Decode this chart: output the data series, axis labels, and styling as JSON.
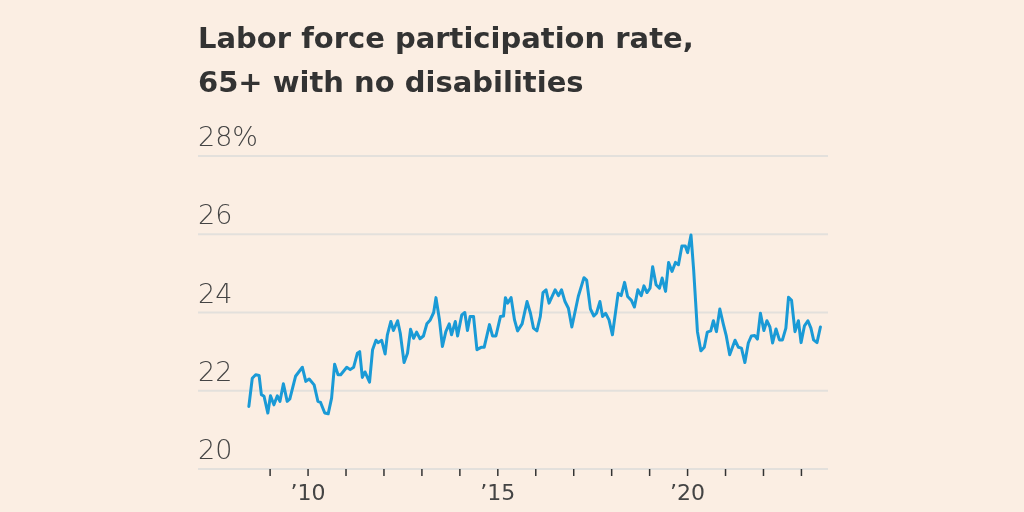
{
  "chart_data": {
    "type": "line",
    "title": "Labor force participation rate,\n65+ with no disabilities",
    "x": [
      2008.44,
      2008.53,
      2008.62,
      2008.71,
      2008.77,
      2008.84,
      2008.94,
      2009.01,
      2009.1,
      2009.19,
      2009.26,
      2009.35,
      2009.45,
      2009.52,
      2009.67,
      2009.85,
      2009.94,
      2010.03,
      2010.16,
      2010.26,
      2010.33,
      2010.44,
      2010.53,
      2010.62,
      2010.7,
      2010.79,
      2010.86,
      2011.02,
      2011.11,
      2011.2,
      2011.3,
      2011.36,
      2011.43,
      2011.5,
      2011.62,
      2011.7,
      2011.79,
      2011.85,
      2011.94,
      2012.03,
      2012.09,
      2012.18,
      2012.25,
      2012.36,
      2012.43,
      2012.53,
      2012.62,
      2012.7,
      2012.78,
      2012.86,
      2012.95,
      2013.04,
      2013.13,
      2013.22,
      2013.31,
      2013.37,
      2013.46,
      2013.54,
      2013.63,
      2013.72,
      2013.78,
      2013.88,
      2013.94,
      2014.05,
      2014.13,
      2014.2,
      2014.27,
      2014.36,
      2014.45,
      2014.56,
      2014.64,
      2014.78,
      2014.86,
      2014.95,
      2015.07,
      2015.15,
      2015.2,
      2015.26,
      2015.35,
      2015.44,
      2015.52,
      2015.64,
      2015.77,
      2015.86,
      2015.94,
      2016.03,
      2016.12,
      2016.19,
      2016.27,
      2016.35,
      2016.51,
      2016.6,
      2016.68,
      2016.77,
      2016.86,
      2016.95,
      2017.12,
      2017.27,
      2017.34,
      2017.44,
      2017.53,
      2017.6,
      2017.69,
      2017.76,
      2017.84,
      2017.93,
      2018.02,
      2018.17,
      2018.25,
      2018.34,
      2018.42,
      2018.52,
      2018.6,
      2018.69,
      2018.78,
      2018.85,
      2018.93,
      2019.01,
      2019.08,
      2019.17,
      2019.26,
      2019.33,
      2019.42,
      2019.5,
      2019.59,
      2019.68,
      2019.76,
      2019.85,
      2019.94,
      2020.0,
      2020.09,
      2020.16,
      2020.26,
      2020.35,
      2020.44,
      2020.52,
      2020.61,
      2020.68,
      2020.76,
      2020.85,
      2020.94,
      2021.02,
      2021.11,
      2021.25,
      2021.34,
      2021.42,
      2021.51,
      2021.6,
      2021.68,
      2021.77,
      2021.84,
      2021.92,
      2022.01,
      2022.09,
      2022.17,
      2022.24,
      2022.33,
      2022.42,
      2022.5,
      2022.59,
      2022.66,
      2022.74,
      2022.83,
      2022.92,
      2022.99,
      2023.08,
      2023.17,
      2023.25,
      2023.32,
      2023.41,
      2023.5
    ],
    "series": [
      {
        "color": "#1a9ad6",
        "values": [
          21.6,
          22.32,
          22.41,
          22.39,
          21.9,
          21.86,
          21.43,
          21.87,
          21.64,
          21.87,
          21.73,
          22.18,
          21.73,
          21.79,
          22.37,
          22.6,
          22.24,
          22.3,
          22.15,
          21.73,
          21.7,
          21.43,
          21.41,
          21.81,
          22.68,
          22.41,
          22.41,
          22.6,
          22.54,
          22.6,
          22.96,
          23.0,
          22.34,
          22.48,
          22.22,
          23.05,
          23.29,
          23.23,
          23.29,
          22.94,
          23.43,
          23.77,
          23.54,
          23.79,
          23.47,
          22.72,
          22.96,
          23.57,
          23.34,
          23.5,
          23.33,
          23.4,
          23.71,
          23.81,
          24.0,
          24.38,
          23.83,
          23.13,
          23.51,
          23.71,
          23.43,
          23.77,
          23.4,
          23.94,
          24.0,
          23.54,
          23.9,
          23.9,
          23.05,
          23.11,
          23.11,
          23.69,
          23.4,
          23.4,
          23.9,
          23.91,
          24.38,
          24.24,
          24.38,
          23.81,
          23.53,
          23.71,
          24.28,
          23.98,
          23.6,
          23.53,
          23.9,
          24.51,
          24.58,
          24.24,
          24.58,
          24.43,
          24.58,
          24.28,
          24.11,
          23.63,
          24.41,
          24.89,
          24.83,
          24.09,
          23.91,
          23.98,
          24.28,
          23.9,
          23.98,
          23.81,
          23.43,
          24.49,
          24.43,
          24.77,
          24.41,
          24.31,
          24.14,
          24.58,
          24.43,
          24.68,
          24.51,
          24.62,
          25.17,
          24.71,
          24.62,
          24.88,
          24.54,
          25.28,
          25.05,
          25.28,
          25.22,
          25.7,
          25.7,
          25.53,
          25.98,
          25.09,
          23.51,
          23.02,
          23.11,
          23.5,
          23.53,
          23.79,
          23.51,
          24.09,
          23.71,
          23.4,
          22.92,
          23.29,
          23.11,
          23.09,
          22.72,
          23.22,
          23.4,
          23.41,
          23.32,
          23.98,
          23.54,
          23.79,
          23.63,
          23.22,
          23.58,
          23.3,
          23.3,
          23.6,
          24.39,
          24.31,
          23.51,
          23.79,
          23.23,
          23.66,
          23.79,
          23.6,
          23.3,
          23.23,
          23.63
        ]
      }
    ],
    "xlim": [
      2007.1,
      2023.7
    ],
    "xticks": [
      {
        "value": 2009,
        "label": null
      },
      {
        "value": 2010,
        "label": "’10"
      },
      {
        "value": 2011,
        "label": null
      },
      {
        "value": 2012,
        "label": null
      },
      {
        "value": 2013,
        "label": null
      },
      {
        "value": 2014,
        "label": null
      },
      {
        "value": 2015,
        "label": "’15"
      },
      {
        "value": 2016,
        "label": null
      },
      {
        "value": 2017,
        "label": null
      },
      {
        "value": 2018,
        "label": null
      },
      {
        "value": 2019,
        "label": null
      },
      {
        "value": 2020,
        "label": "’20"
      },
      {
        "value": 2021,
        "label": null
      },
      {
        "value": 2022,
        "label": null
      },
      {
        "value": 2023,
        "label": null
      }
    ],
    "ylim": [
      20,
      28
    ],
    "yticks": [
      20,
      22,
      24,
      26,
      {
        "value": 28,
        "label": "28%"
      }
    ],
    "grid": "y"
  }
}
